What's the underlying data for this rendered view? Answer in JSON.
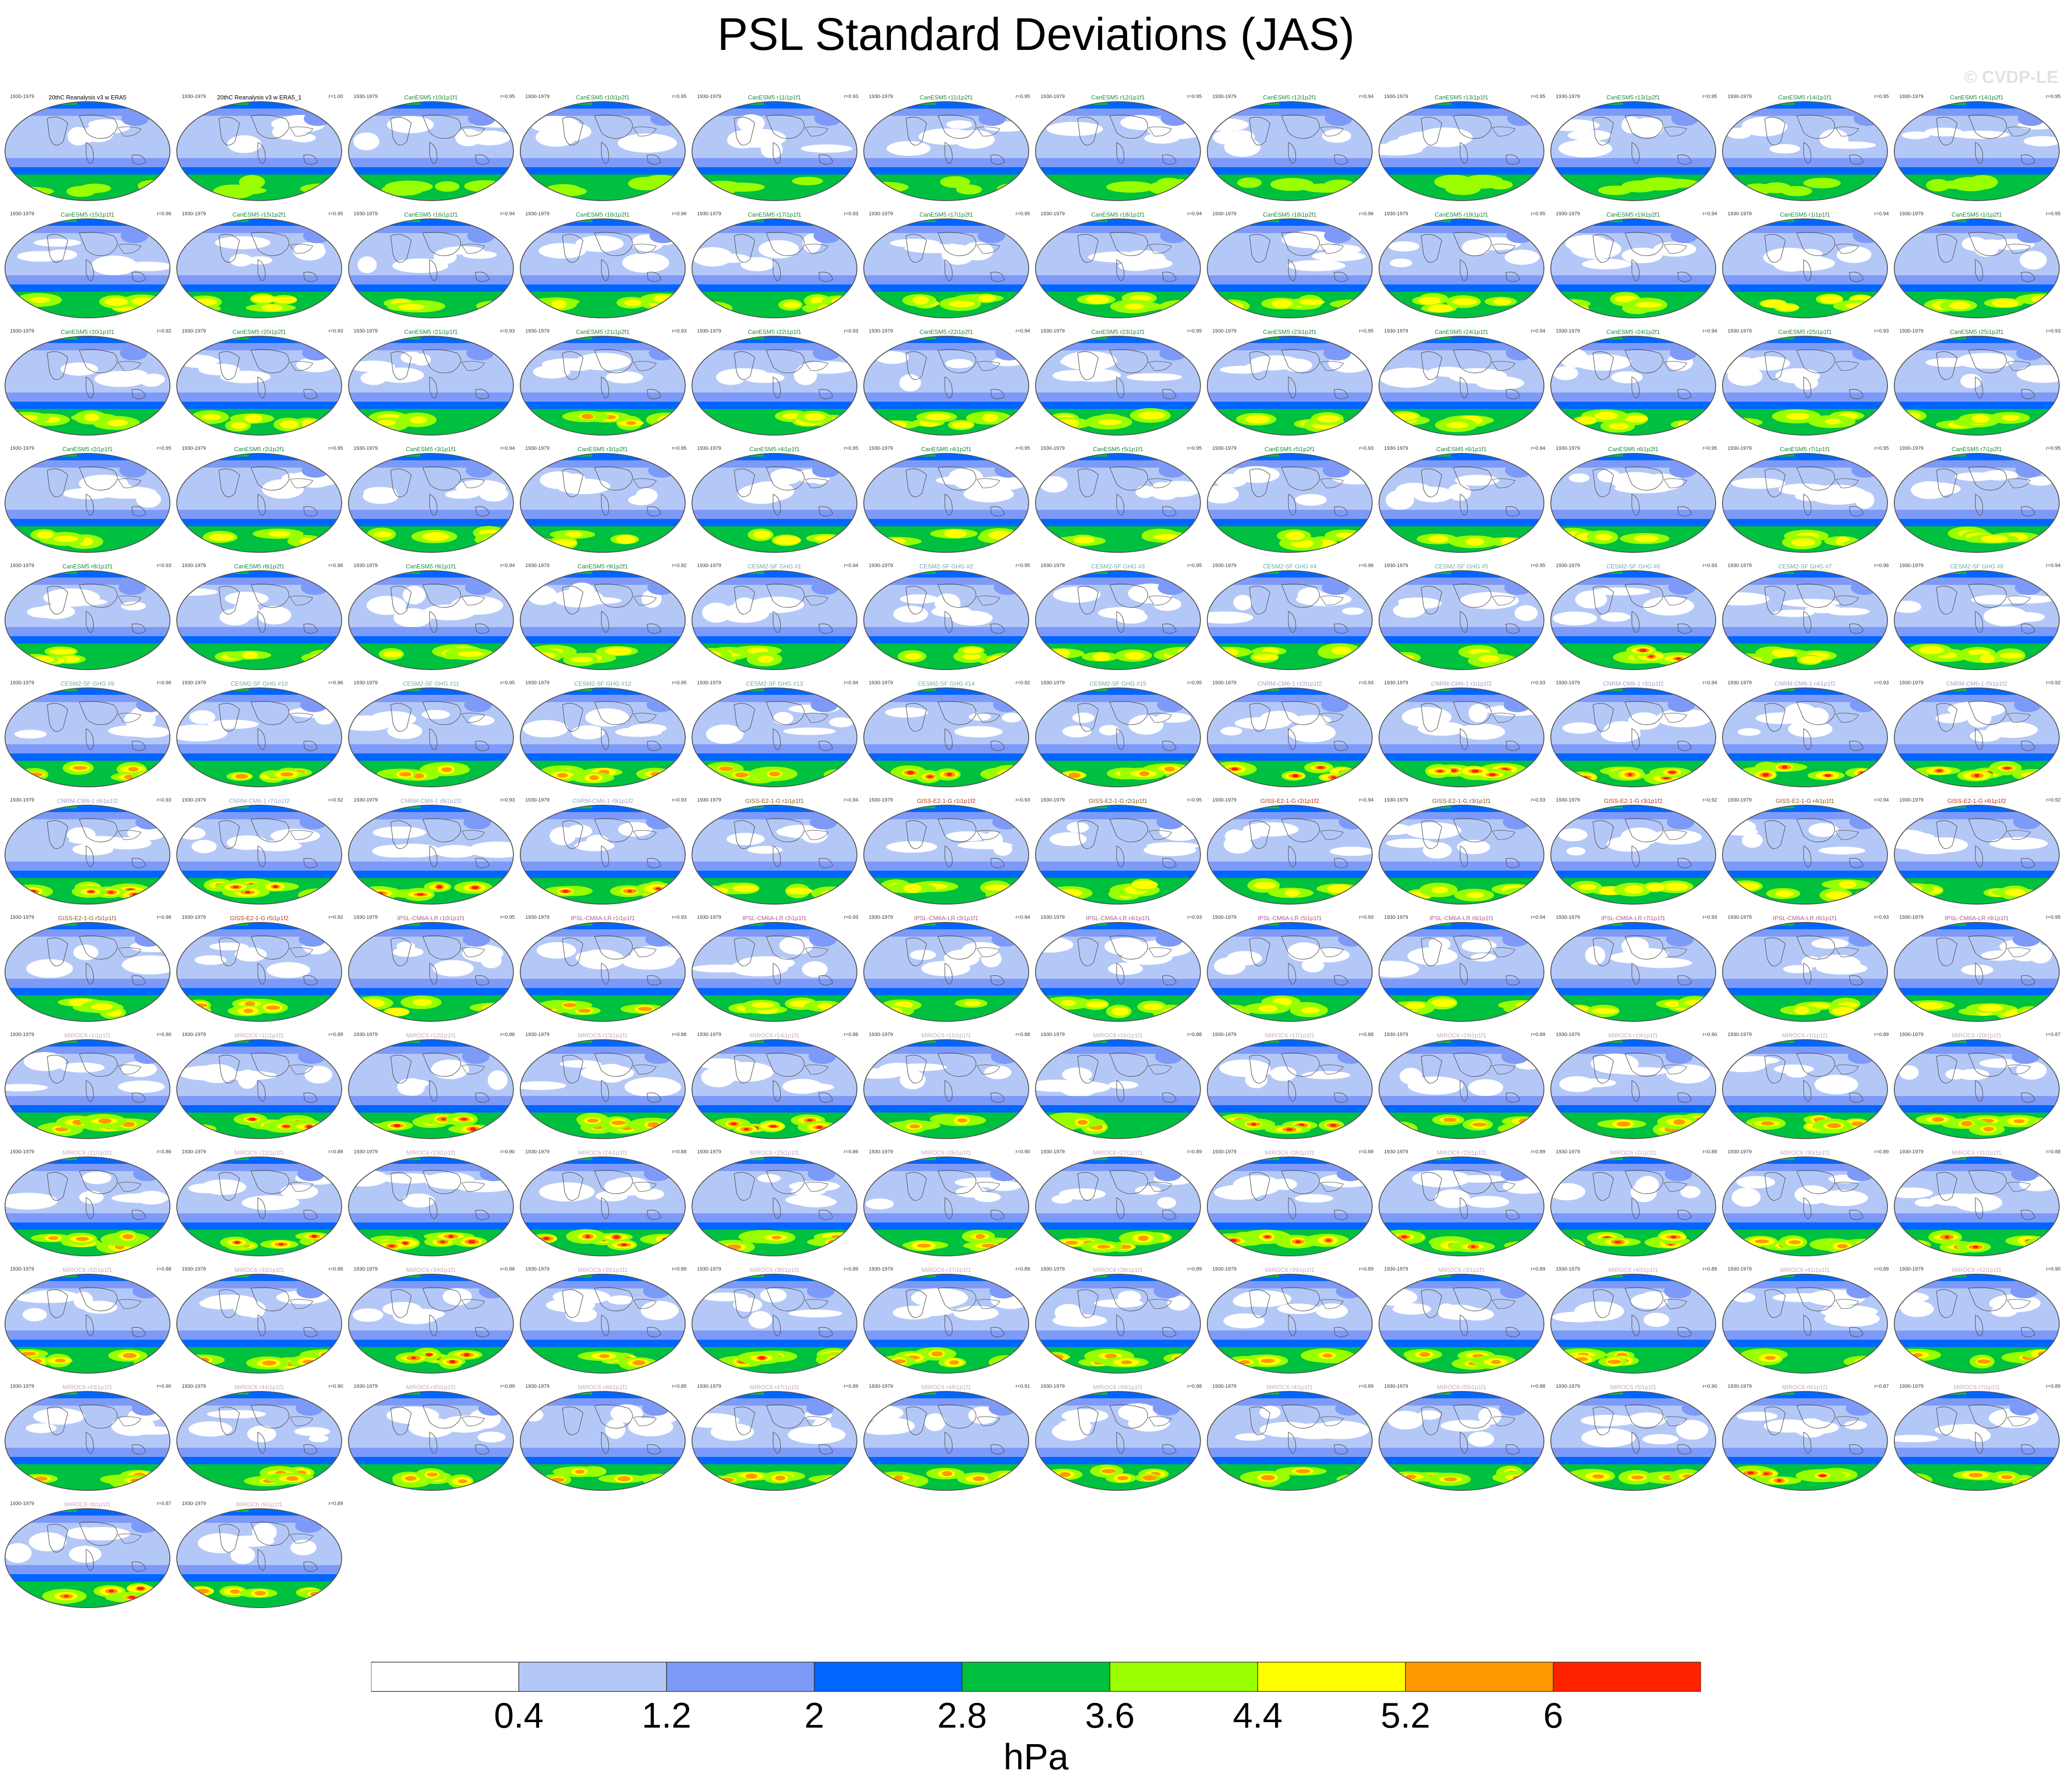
{
  "title": "PSL Standard Deviations (JAS)",
  "watermark": "© CVDP-LE",
  "units": "hPa",
  "colorbar": {
    "levels": [
      "0.4",
      "1.2",
      "2",
      "2.8",
      "3.6",
      "4.4",
      "5.2",
      "6"
    ],
    "colors": [
      "#ffffff",
      "#b4c8f8",
      "#7e9af8",
      "#0066ff",
      "#00c040",
      "#99ff00",
      "#ffff00",
      "#ff9900",
      "#ff2200"
    ]
  },
  "chart_data": {
    "type": "heatmap",
    "title": "PSL Standard Deviations (JAS)",
    "units": "hPa",
    "period": "1930-1979",
    "contour_levels": [
      0.4,
      1.2,
      2,
      2.8,
      3.6,
      4.4,
      5.2,
      6
    ],
    "panels": [
      {
        "name": "20thC Reanalysis v3 w ERA5",
        "r": "",
        "color": "#000000",
        "intensity": 0.9
      },
      {
        "name": "20thC Reanalysis v3 w ERA5_1",
        "r": "r=1.00",
        "color": "#000000",
        "intensity": 0.9
      },
      {
        "name": "CanESM5 r10i1p1f1",
        "r": "r=0.95",
        "color": "#1a8a3a",
        "intensity": 1.0
      },
      {
        "name": "CanESM5 r10i1p2f1",
        "r": "r=0.95",
        "color": "#1a8a3a",
        "intensity": 1.0
      },
      {
        "name": "CanESM5 r11i1p1f1",
        "r": "r=0.93",
        "color": "#1a8a3a",
        "intensity": 1.0
      },
      {
        "name": "CanESM5 r11i1p2f1",
        "r": "r=0.95",
        "color": "#1a8a3a",
        "intensity": 1.0
      },
      {
        "name": "CanESM5 r12i1p1f1",
        "r": "r=0.95",
        "color": "#1a8a3a",
        "intensity": 1.0
      },
      {
        "name": "CanESM5 r12i1p2f1",
        "r": "r=0.94",
        "color": "#1a8a3a",
        "intensity": 1.0
      },
      {
        "name": "CanESM5 r13i1p1f1",
        "r": "r=0.95",
        "color": "#1a8a3a",
        "intensity": 1.0
      },
      {
        "name": "CanESM5 r13i1p2f1",
        "r": "r=0.95",
        "color": "#1a8a3a",
        "intensity": 1.0
      },
      {
        "name": "CanESM5 r14i1p1f1",
        "r": "r=0.95",
        "color": "#1a8a3a",
        "intensity": 1.0
      },
      {
        "name": "CanESM5 r14i1p2f1",
        "r": "r=0.95",
        "color": "#1a8a3a",
        "intensity": 1.0
      },
      {
        "name": "CanESM5 r15i1p1f1",
        "r": "r=0.96",
        "color": "#1a8a3a",
        "intensity": 1.3
      },
      {
        "name": "CanESM5 r15i1p2f1",
        "r": "r=0.95",
        "color": "#1a8a3a",
        "intensity": 1.3
      },
      {
        "name": "CanESM5 r16i1p1f1",
        "r": "r=0.94",
        "color": "#1a8a3a",
        "intensity": 1.3
      },
      {
        "name": "CanESM5 r16i1p2f1",
        "r": "r=0.96",
        "color": "#1a8a3a",
        "intensity": 1.3
      },
      {
        "name": "CanESM5 r17i1p1f1",
        "r": "r=0.93",
        "color": "#1a8a3a",
        "intensity": 1.3
      },
      {
        "name": "CanESM5 r17i1p2f1",
        "r": "r=0.95",
        "color": "#1a8a3a",
        "intensity": 1.3
      },
      {
        "name": "CanESM5 r18i1p1f1",
        "r": "r=0.94",
        "color": "#1a8a3a",
        "intensity": 1.3
      },
      {
        "name": "CanESM5 r18i1p2f1",
        "r": "r=0.96",
        "color": "#1a8a3a",
        "intensity": 1.3
      },
      {
        "name": "CanESM5 r19i1p1f1",
        "r": "r=0.95",
        "color": "#1a8a3a",
        "intensity": 1.3
      },
      {
        "name": "CanESM5 r19i1p2f1",
        "r": "r=0.94",
        "color": "#1a8a3a",
        "intensity": 1.3
      },
      {
        "name": "CanESM5 r1i1p1f1",
        "r": "r=0.94",
        "color": "#1a8a3a",
        "intensity": 1.3
      },
      {
        "name": "CanESM5 r1i1p2f1",
        "r": "r=0.95",
        "color": "#1a8a3a",
        "intensity": 1.3
      },
      {
        "name": "CanESM5 r20i1p1f1",
        "r": "r=0.92",
        "color": "#1a8a3a",
        "intensity": 1.4
      },
      {
        "name": "CanESM5 r20i1p2f1",
        "r": "r=0.93",
        "color": "#1a8a3a",
        "intensity": 1.4
      },
      {
        "name": "CanESM5 r21i1p1f1",
        "r": "r=0.93",
        "color": "#1a8a3a",
        "intensity": 1.4
      },
      {
        "name": "CanESM5 r21i1p2f1",
        "r": "r=0.93",
        "color": "#1a8a3a",
        "intensity": 1.6
      },
      {
        "name": "CanESM5 r22i1p1f1",
        "r": "r=0.93",
        "color": "#1a8a3a",
        "intensity": 1.4
      },
      {
        "name": "CanESM5 r22i1p2f1",
        "r": "r=0.94",
        "color": "#1a8a3a",
        "intensity": 1.4
      },
      {
        "name": "CanESM5 r23i1p1f1",
        "r": "r=0.95",
        "color": "#1a8a3a",
        "intensity": 1.4
      },
      {
        "name": "CanESM5 r23i1p2f1",
        "r": "r=0.95",
        "color": "#1a8a3a",
        "intensity": 1.4
      },
      {
        "name": "CanESM5 r24i1p1f1",
        "r": "r=0.94",
        "color": "#1a8a3a",
        "intensity": 1.4
      },
      {
        "name": "CanESM5 r24i1p2f1",
        "r": "r=0.94",
        "color": "#1a8a3a",
        "intensity": 1.4
      },
      {
        "name": "CanESM5 r25i1p1f1",
        "r": "r=0.93",
        "color": "#1a8a3a",
        "intensity": 1.4
      },
      {
        "name": "CanESM5 r25i1p2f1",
        "r": "r=0.93",
        "color": "#1a8a3a",
        "intensity": 1.4
      },
      {
        "name": "CanESM5 r2i1p1f1",
        "r": "r=0.95",
        "color": "#1a8a3a",
        "intensity": 1.2
      },
      {
        "name": "CanESM5 r2i1p2f1",
        "r": "r=0.95",
        "color": "#1a8a3a",
        "intensity": 1.2
      },
      {
        "name": "CanESM5 r3i1p1f1",
        "r": "r=0.94",
        "color": "#1a8a3a",
        "intensity": 1.2
      },
      {
        "name": "CanESM5 r3i1p2f1",
        "r": "r=0.95",
        "color": "#1a8a3a",
        "intensity": 1.2
      },
      {
        "name": "CanESM5 r4i1p1f1",
        "r": "r=0.95",
        "color": "#1a8a3a",
        "intensity": 1.2
      },
      {
        "name": "CanESM5 r4i1p2f1",
        "r": "r=0.95",
        "color": "#1a8a3a",
        "intensity": 1.2
      },
      {
        "name": "CanESM5 r5i1p1f1",
        "r": "r=0.95",
        "color": "#1a8a3a",
        "intensity": 1.2
      },
      {
        "name": "CanESM5 r5i1p2f1",
        "r": "r=0.93",
        "color": "#1a8a3a",
        "intensity": 1.2
      },
      {
        "name": "CanESM5 r6i1p1f1",
        "r": "r=0.94",
        "color": "#1a8a3a",
        "intensity": 1.2
      },
      {
        "name": "CanESM5 r6i1p2f1",
        "r": "r=0.95",
        "color": "#1a8a3a",
        "intensity": 1.2
      },
      {
        "name": "CanESM5 r7i1p1f1",
        "r": "r=0.95",
        "color": "#1a8a3a",
        "intensity": 1.2
      },
      {
        "name": "CanESM5 r7i1p2f1",
        "r": "r=0.95",
        "color": "#1a8a3a",
        "intensity": 1.2
      },
      {
        "name": "CanESM5 r8i1p1f1",
        "r": "r=0.93",
        "color": "#1a8a3a",
        "intensity": 1.3
      },
      {
        "name": "CanESM5 r8i1p2f1",
        "r": "r=0.96",
        "color": "#1a8a3a",
        "intensity": 1.3
      },
      {
        "name": "CanESM5 r9i1p1f1",
        "r": "r=0.94",
        "color": "#1a8a3a",
        "intensity": 1.3
      },
      {
        "name": "CanESM5 r9i1p2f1",
        "r": "r=0.92",
        "color": "#1a8a3a",
        "intensity": 1.3
      },
      {
        "name": "CESM2-SF GHG #1",
        "r": "r=0.94",
        "color": "#6fa8a8",
        "intensity": 1.5
      },
      {
        "name": "CESM2-SF GHG #2",
        "r": "r=0.95",
        "color": "#6fa8a8",
        "intensity": 1.5
      },
      {
        "name": "CESM2-SF GHG #3",
        "r": "r=0.95",
        "color": "#6fa8a8",
        "intensity": 1.5
      },
      {
        "name": "CESM2-SF GHG #4",
        "r": "r=0.96",
        "color": "#6fa8a8",
        "intensity": 1.5
      },
      {
        "name": "CESM2-SF GHG #5",
        "r": "r=0.95",
        "color": "#6fa8a8",
        "intensity": 1.5
      },
      {
        "name": "CESM2-SF GHG #6",
        "r": "r=0.93",
        "color": "#6fa8a8",
        "intensity": 1.9
      },
      {
        "name": "CESM2-SF GHG #7",
        "r": "r=0.96",
        "color": "#6fa8a8",
        "intensity": 1.5
      },
      {
        "name": "CESM2-SF GHG #8",
        "r": "r=0.94",
        "color": "#6fa8a8",
        "intensity": 1.5
      },
      {
        "name": "CESM2-SF GHG #9",
        "r": "r=0.96",
        "color": "#6fa8a8",
        "intensity": 1.7
      },
      {
        "name": "CESM2-SF GHG #10",
        "r": "r=0.96",
        "color": "#6fa8a8",
        "intensity": 1.7
      },
      {
        "name": "CESM2-SF GHG #11",
        "r": "r=0.95",
        "color": "#6fa8a8",
        "intensity": 1.6
      },
      {
        "name": "CESM2-SF GHG #12",
        "r": "r=0.95",
        "color": "#6fa8a8",
        "intensity": 1.6
      },
      {
        "name": "CESM2-SF GHG #13",
        "r": "r=0.94",
        "color": "#6fa8a8",
        "intensity": 1.6
      },
      {
        "name": "CESM2-SF GHG #14",
        "r": "r=0.92",
        "color": "#6fa8a8",
        "intensity": 2.0
      },
      {
        "name": "CESM2-SF GHG #15",
        "r": "r=0.95",
        "color": "#6fa8a8",
        "intensity": 1.6
      },
      {
        "name": "CNRM-CM6-1 r10i1p1f2",
        "r": "r=0.93",
        "color": "#a0a0c8",
        "intensity": 2.0
      },
      {
        "name": "CNRM-CM6-1 r1i1p1f2",
        "r": "r=0.93",
        "color": "#a0a0c8",
        "intensity": 2.0
      },
      {
        "name": "CNRM-CM6-1 r3i1p1f2",
        "r": "r=0.94",
        "color": "#a0a0c8",
        "intensity": 2.0
      },
      {
        "name": "CNRM-CM6-1 r4i1p1f2",
        "r": "r=0.93",
        "color": "#a0a0c8",
        "intensity": 2.0
      },
      {
        "name": "CNRM-CM6-1 r5i1p1f2",
        "r": "r=0.92",
        "color": "#a0a0c8",
        "intensity": 1.9
      },
      {
        "name": "CNRM-CM6-1 r6i1p1f2",
        "r": "r=0.93",
        "color": "#a0a0c8",
        "intensity": 2.0
      },
      {
        "name": "CNRM-CM6-1 r7i1p1f2",
        "r": "r=0.92",
        "color": "#a0a0c8",
        "intensity": 2.0
      },
      {
        "name": "CNRM-CM6-1 r8i1p1f2",
        "r": "r=0.93",
        "color": "#a0a0c8",
        "intensity": 1.9
      },
      {
        "name": "CNRM-CM6-1 r9i1p1f2",
        "r": "r=0.93",
        "color": "#a0a0c8",
        "intensity": 1.9
      },
      {
        "name": "GISS-E2-1-G r1i1p1f1",
        "r": "r=0.94",
        "color": "#8a5a1a",
        "intensity": 1.4
      },
      {
        "name": "GISS-E2-1-G r1i1p1f2",
        "r": "r=0.93",
        "color": "#b83a1a",
        "intensity": 1.4
      },
      {
        "name": "GISS-E2-1-G r2i1p1f1",
        "r": "r=0.95",
        "color": "#8a5a1a",
        "intensity": 1.4
      },
      {
        "name": "GISS-E2-1-G r2i1p1f2",
        "r": "r=0.94",
        "color": "#b83a1a",
        "intensity": 1.4
      },
      {
        "name": "GISS-E2-1-G r3i1p1f1",
        "r": "r=0.93",
        "color": "#8a5a1a",
        "intensity": 1.4
      },
      {
        "name": "GISS-E2-1-G r3i1p1f2",
        "r": "r=0.92",
        "color": "#b83a1a",
        "intensity": 1.4
      },
      {
        "name": "GISS-E2-1-G r4i1p1f1",
        "r": "r=0.94",
        "color": "#8a5a1a",
        "intensity": 1.4
      },
      {
        "name": "GISS-E2-1-G r4i1p1f2",
        "r": "r=0.92",
        "color": "#b83a1a",
        "intensity": 1.4
      },
      {
        "name": "GISS-E2-1-G r5i1p1f1",
        "r": "r=0.96",
        "color": "#8a5a1a",
        "intensity": 1.5
      },
      {
        "name": "GISS-E2-1-G r5i1p1f2",
        "r": "r=0.92",
        "color": "#b83a1a",
        "intensity": 1.8
      },
      {
        "name": "IPSL-CM6A-LR r10i1p1f1",
        "r": "r=0.95",
        "color": "#b05a8a",
        "intensity": 1.4
      },
      {
        "name": "IPSL-CM6A-LR r1i1p1f1",
        "r": "r=0.93",
        "color": "#b05a8a",
        "intensity": 1.6
      },
      {
        "name": "IPSL-CM6A-LR r2i1p1f1",
        "r": "r=0.93",
        "color": "#b05a8a",
        "intensity": 1.4
      },
      {
        "name": "IPSL-CM6A-LR r3i1p1f1",
        "r": "r=0.94",
        "color": "#b05a8a",
        "intensity": 1.4
      },
      {
        "name": "IPSL-CM6A-LR r4i1p1f1",
        "r": "r=0.93",
        "color": "#b05a8a",
        "intensity": 1.4
      },
      {
        "name": "IPSL-CM6A-LR r5i1p1f1",
        "r": "r=0.93",
        "color": "#b05a8a",
        "intensity": 1.4
      },
      {
        "name": "IPSL-CM6A-LR r6i1p1f1",
        "r": "r=0.94",
        "color": "#b05a8a",
        "intensity": 1.4
      },
      {
        "name": "IPSL-CM6A-LR r7i1p1f1",
        "r": "r=0.93",
        "color": "#b05a8a",
        "intensity": 1.4
      },
      {
        "name": "IPSL-CM6A-LR r8i1p1f1",
        "r": "r=0.93",
        "color": "#b05a8a",
        "intensity": 1.4
      },
      {
        "name": "IPSL-CM6A-LR r9i1p1f1",
        "r": "r=0.95",
        "color": "#b05a8a",
        "intensity": 1.4
      },
      {
        "name": "MIROC6 r1i1p1f1",
        "r": "r=0.90",
        "color": "#c8a8c0",
        "intensity": 1.7
      },
      {
        "name": "MIROC6 r11i1p1f1",
        "r": "r=0.89",
        "color": "#c8a8c0",
        "intensity": 1.9
      },
      {
        "name": "MIROC6 r12i1p1f1",
        "r": "r=0.86",
        "color": "#c8a8c0",
        "intensity": 2.0
      },
      {
        "name": "MIROC6 r13i1p1f1",
        "r": "r=0.88",
        "color": "#c8a8c0",
        "intensity": 1.8
      },
      {
        "name": "MIROC6 r14i1p1f1",
        "r": "r=0.86",
        "color": "#c8a8c0",
        "intensity": 1.9
      },
      {
        "name": "MIROC6 r15i1p1f1",
        "r": "r=0.88",
        "color": "#c8a8c0",
        "intensity": 1.7
      },
      {
        "name": "MIROC6 r16i1p1f1",
        "r": "r=0.88",
        "color": "#c8a8c0",
        "intensity": 1.8
      },
      {
        "name": "MIROC6 r17i1p1f1",
        "r": "r=0.88",
        "color": "#c8a8c0",
        "intensity": 2.0
      },
      {
        "name": "MIROC6 r18i1p1f1",
        "r": "r=0.89",
        "color": "#c8a8c0",
        "intensity": 1.8
      },
      {
        "name": "MIROC6 r19i1p1f1",
        "r": "r=0.90",
        "color": "#c8a8c0",
        "intensity": 1.8
      },
      {
        "name": "MIROC6 r1i1p1f1",
        "r": "r=0.89",
        "color": "#c8a8c0",
        "intensity": 1.8
      },
      {
        "name": "MIROC6 r20i1p1f1",
        "r": "r=0.87",
        "color": "#c8a8c0",
        "intensity": 1.8
      },
      {
        "name": "MIROC6 r21i1p1f1",
        "r": "r=0.86",
        "color": "#c8a8c0",
        "intensity": 1.8
      },
      {
        "name": "MIROC6 r22i1p1f1",
        "r": "r=0.89",
        "color": "#c8a8c0",
        "intensity": 2.0
      },
      {
        "name": "MIROC6 r23i1p1f1",
        "r": "r=0.90",
        "color": "#c8a8c0",
        "intensity": 2.0
      },
      {
        "name": "MIROC6 r24i1p1f1",
        "r": "r=0.88",
        "color": "#c8a8c0",
        "intensity": 1.9
      },
      {
        "name": "MIROC6 r25i1p1f1",
        "r": "r=0.86",
        "color": "#c8a8c0",
        "intensity": 1.8
      },
      {
        "name": "MIROC6 r26i1p1f1",
        "r": "r=0.90",
        "color": "#c8a8c0",
        "intensity": 1.8
      },
      {
        "name": "MIROC6 r27i1p1f1",
        "r": "r=0.89",
        "color": "#c8a8c0",
        "intensity": 1.8
      },
      {
        "name": "MIROC6 r28i1p1f1",
        "r": "r=0.89",
        "color": "#c8a8c0",
        "intensity": 1.9
      },
      {
        "name": "MIROC6 r29i1p1f1",
        "r": "r=0.89",
        "color": "#c8a8c0",
        "intensity": 1.9
      },
      {
        "name": "MIROC6 r2i1p1f1",
        "r": "r=0.88",
        "color": "#c8a8c0",
        "intensity": 1.9
      },
      {
        "name": "MIROC6 r30i1p1f1",
        "r": "r=0.89",
        "color": "#c8a8c0",
        "intensity": 1.8
      },
      {
        "name": "MIROC6 r31i1p1f1",
        "r": "r=0.88",
        "color": "#c8a8c0",
        "intensity": 1.9
      },
      {
        "name": "MIROC6 r32i1p1f1",
        "r": "r=0.88",
        "color": "#c8a8c0",
        "intensity": 1.7
      },
      {
        "name": "MIROC6 r33i1p1f1",
        "r": "r=0.88",
        "color": "#c8a8c0",
        "intensity": 1.7
      },
      {
        "name": "MIROC6 r34i1p1f1",
        "r": "r=0.88",
        "color": "#c8a8c0",
        "intensity": 1.9
      },
      {
        "name": "MIROC6 r35i1p1f1",
        "r": "r=0.89",
        "color": "#c8a8c0",
        "intensity": 1.7
      },
      {
        "name": "MIROC6 r36i1p1f1",
        "r": "r=0.89",
        "color": "#c8a8c0",
        "intensity": 1.9
      },
      {
        "name": "MIROC6 r37i1p1f1",
        "r": "r=0.89",
        "color": "#c8a8c0",
        "intensity": 1.7
      },
      {
        "name": "MIROC6 r38i1p1f1",
        "r": "r=0.89",
        "color": "#c8a8c0",
        "intensity": 1.7
      },
      {
        "name": "MIROC6 r39i1p1f1",
        "r": "r=0.89",
        "color": "#c8a8c0",
        "intensity": 1.7
      },
      {
        "name": "MIROC6 r3i1p1f1",
        "r": "r=0.89",
        "color": "#c8a8c0",
        "intensity": 1.7
      },
      {
        "name": "MIROC6 r40i1p1f1",
        "r": "r=0.89",
        "color": "#c8a8c0",
        "intensity": 1.7
      },
      {
        "name": "MIROC6 r41i1p1f1",
        "r": "r=0.89",
        "color": "#c8a8c0",
        "intensity": 1.7
      },
      {
        "name": "MIROC6 r42i1p1f1",
        "r": "r=0.90",
        "color": "#c8a8c0",
        "intensity": 1.7
      },
      {
        "name": "MIROC6 r43i1p1f1",
        "r": "r=0.90",
        "color": "#c8a8c0",
        "intensity": 1.6
      },
      {
        "name": "MIROC6 r44i1p1f1",
        "r": "r=0.90",
        "color": "#c8a8c0",
        "intensity": 1.7
      },
      {
        "name": "MIROC6 r45i1p1f1",
        "r": "r=0.89",
        "color": "#c8a8c0",
        "intensity": 1.7
      },
      {
        "name": "MIROC6 r46i1p1f1",
        "r": "r=0.89",
        "color": "#c8a8c0",
        "intensity": 1.8
      },
      {
        "name": "MIROC6 r47i1p1f1",
        "r": "r=0.89",
        "color": "#c8a8c0",
        "intensity": 1.7
      },
      {
        "name": "MIROC6 r48i1p1f1",
        "r": "r=0.91",
        "color": "#c8a8c0",
        "intensity": 1.7
      },
      {
        "name": "MIROC6 r49i1p1f1",
        "r": "r=0.88",
        "color": "#c8a8c0",
        "intensity": 1.6
      },
      {
        "name": "MIROC6 r4i1p1f1",
        "r": "r=0.89",
        "color": "#c8a8c0",
        "intensity": 1.6
      },
      {
        "name": "MIROC6 r50i1p1f1",
        "r": "r=0.88",
        "color": "#c8a8c0",
        "intensity": 1.6
      },
      {
        "name": "MIROC6 r5i1p1f1",
        "r": "r=0.90",
        "color": "#c8a8c0",
        "intensity": 1.6
      },
      {
        "name": "MIROC6 r6i1p1f1",
        "r": "r=0.87",
        "color": "#c8a8c0",
        "intensity": 1.9
      },
      {
        "name": "MIROC6 r7i1p1f1",
        "r": "r=0.89",
        "color": "#c8a8c0",
        "intensity": 1.7
      },
      {
        "name": "MIROC6 r8i1p1f1",
        "r": "r=0.87",
        "color": "#c8a8c0",
        "intensity": 2.0
      },
      {
        "name": "MIROC6 r9i1p1f1",
        "r": "r=0.89",
        "color": "#c8a8c0",
        "intensity": 1.6
      }
    ]
  }
}
